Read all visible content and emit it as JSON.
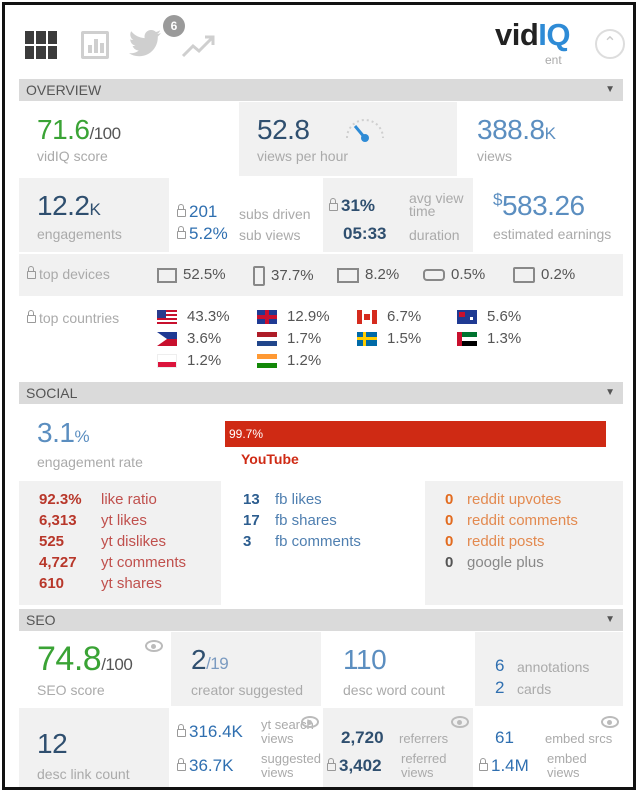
{
  "header": {
    "notification_count": "6",
    "logo_vid": "vid",
    "logo_iq": "IQ",
    "logo_sub": "ent"
  },
  "overview": {
    "title": "OVERVIEW",
    "vidiq_score": {
      "value": "71.6",
      "suffix": "/100",
      "label": "vidIQ score"
    },
    "views_per_hour": {
      "value": "52.8",
      "label": "views per hour"
    },
    "views": {
      "value": "388.8",
      "suffix": "K",
      "label": "views"
    },
    "engagements": {
      "value": "12.2",
      "suffix": "K",
      "label": "engagements"
    },
    "subs_driven": {
      "value": "201",
      "label": "subs driven"
    },
    "sub_views": {
      "value": "5.2%",
      "label": "sub views"
    },
    "avg_view_time": {
      "value": "31%",
      "label1": "avg view",
      "label2": "time"
    },
    "duration": {
      "value": "05:33",
      "label": "duration"
    },
    "estimated_earnings": {
      "value": "583.26",
      "currency": "$",
      "label": "estimated earnings"
    },
    "top_devices": {
      "label": "top devices",
      "items": [
        {
          "icon": "desktop-icon",
          "value": "52.5%"
        },
        {
          "icon": "mobile-icon",
          "value": "37.7%"
        },
        {
          "icon": "tv-icon",
          "value": "8.2%"
        },
        {
          "icon": "console-icon",
          "value": "0.5%"
        },
        {
          "icon": "tablet-icon",
          "value": "0.2%"
        }
      ]
    },
    "top_countries": {
      "label": "top countries",
      "items": [
        {
          "flag": "us",
          "value": "43.3%"
        },
        {
          "flag": "uk",
          "value": "12.9%"
        },
        {
          "flag": "ca",
          "value": "6.7%"
        },
        {
          "flag": "au",
          "value": "5.6%"
        },
        {
          "flag": "ph",
          "value": "3.6%"
        },
        {
          "flag": "nl",
          "value": "1.7%"
        },
        {
          "flag": "se",
          "value": "1.5%"
        },
        {
          "flag": "ae",
          "value": "1.3%"
        },
        {
          "flag": "pl",
          "value": "1.2%"
        },
        {
          "flag": "in",
          "value": "1.2%"
        }
      ]
    }
  },
  "social": {
    "title": "SOCIAL",
    "engagement_rate": {
      "value": "3.1",
      "suffix": "%",
      "label": "engagement rate"
    },
    "youtube_share": {
      "value": "99.7%",
      "label": "YouTube",
      "fraction": 0.997
    },
    "youtube_stats": [
      {
        "n": "92.3%",
        "t": "like ratio"
      },
      {
        "n": "6,313",
        "t": "yt likes"
      },
      {
        "n": "525",
        "t": "yt dislikes"
      },
      {
        "n": "4,727",
        "t": "yt comments"
      },
      {
        "n": "610",
        "t": "yt shares"
      }
    ],
    "fb_stats": [
      {
        "n": "13",
        "t": "fb likes"
      },
      {
        "n": "17",
        "t": "fb shares"
      },
      {
        "n": "3",
        "t": "fb comments"
      }
    ],
    "other_stats": [
      {
        "n": "0",
        "t": "reddit upvotes"
      },
      {
        "n": "0",
        "t": "reddit comments"
      },
      {
        "n": "0",
        "t": "reddit posts"
      },
      {
        "n": "0",
        "t": "google plus"
      }
    ]
  },
  "seo": {
    "title": "SEO",
    "seo_score": {
      "value": "74.8",
      "suffix": "/100",
      "label": "SEO score"
    },
    "creator_suggested": {
      "value": "2",
      "suffix": "/19",
      "label": "creator suggested"
    },
    "desc_word_count": {
      "value": "110",
      "label": "desc word count"
    },
    "annotations": {
      "value": "6",
      "label": "annotations"
    },
    "cards": {
      "value": "2",
      "label": "cards"
    },
    "desc_link_count": {
      "value": "12",
      "label": "desc link count"
    },
    "yt_search_views": {
      "value": "316.4K",
      "label1": "yt search",
      "label2": "views"
    },
    "suggested_views": {
      "value": "36.7K",
      "label1": "suggested",
      "label2": "views"
    },
    "referrers": {
      "value": "2,720",
      "label": "referrers"
    },
    "referred_views": {
      "value": "3,402",
      "label1": "referred",
      "label2": "views"
    },
    "embed_srcs": {
      "value": "61",
      "label": "embed srcs"
    },
    "embed_views": {
      "value": "1.4M",
      "label1": "embed",
      "label2": "views"
    }
  }
}
